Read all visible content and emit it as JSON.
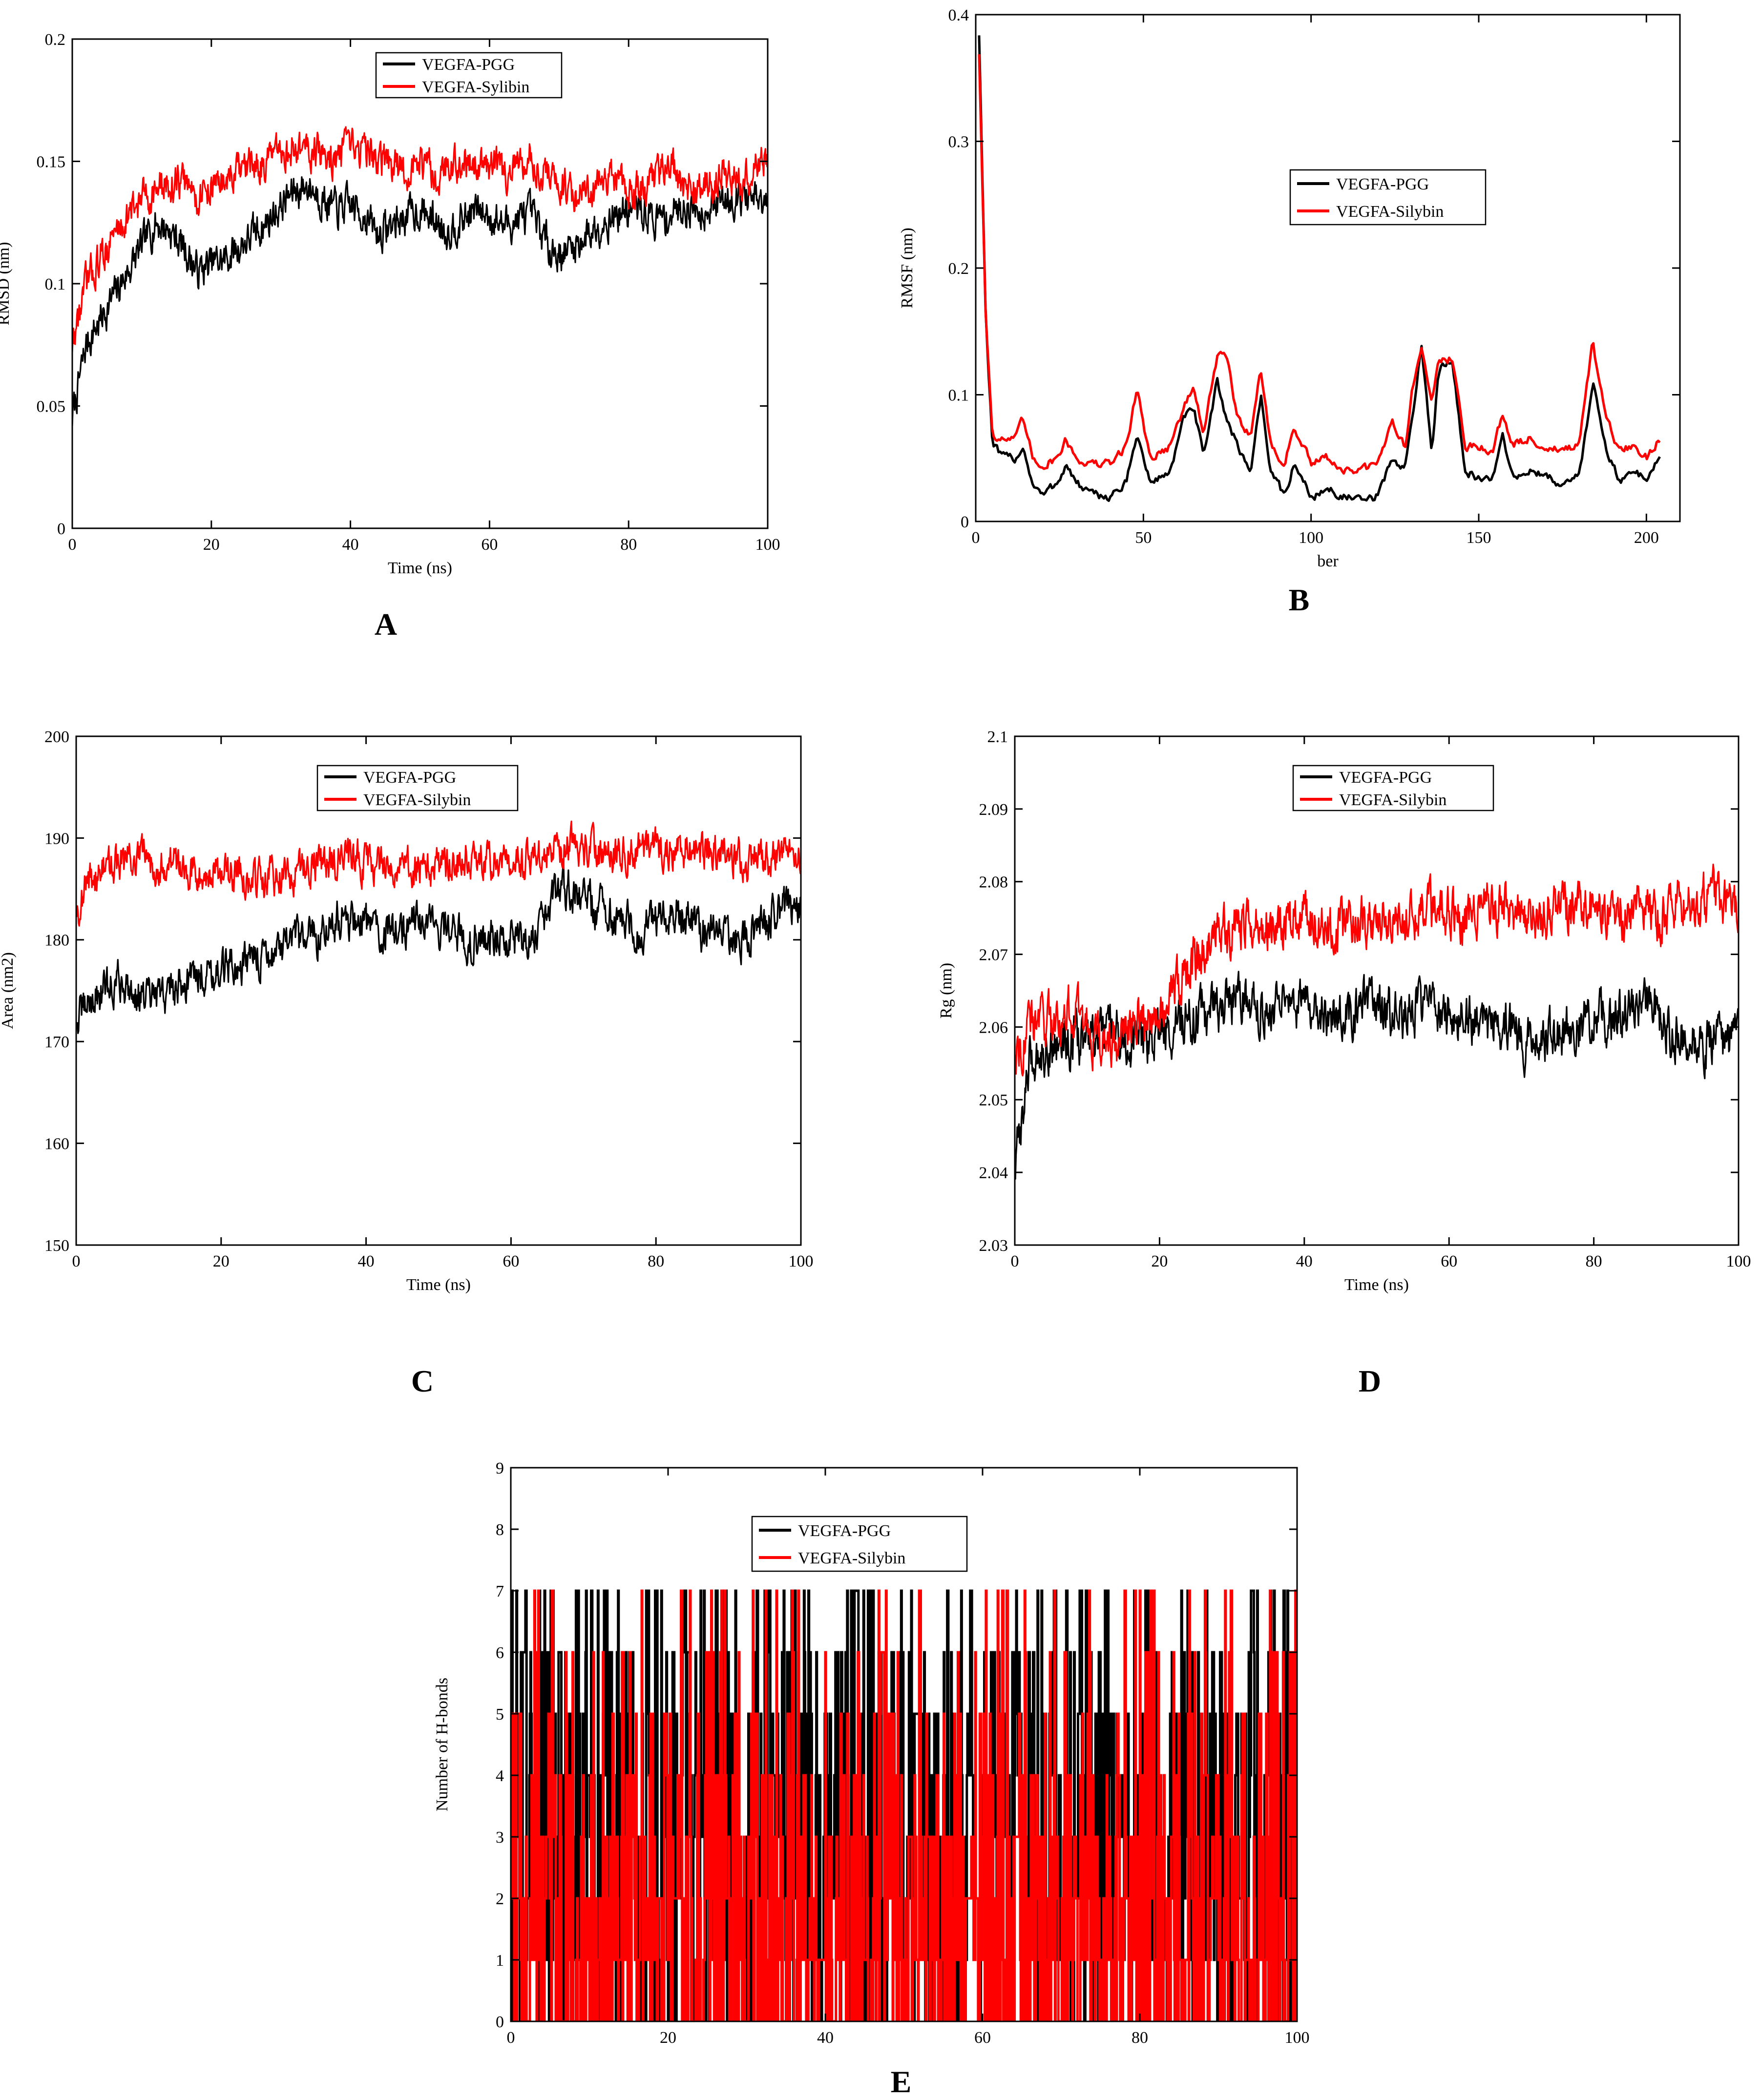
{
  "figure": {
    "panel_labels": [
      "A",
      "B",
      "C",
      "D",
      "E"
    ]
  },
  "colors": {
    "pgg": "#000000",
    "silybin": "#ff0000",
    "axis": "#000000"
  },
  "chart_data": [
    {
      "id": "A",
      "type": "line",
      "title": "",
      "xlabel": "Time (ns)",
      "ylabel": "RMSD (nm)",
      "xlim": [
        0,
        100
      ],
      "ylim": [
        0,
        0.2
      ],
      "xticks": [
        0,
        20,
        40,
        60,
        80,
        100
      ],
      "xtick_labels": [
        "0",
        "20",
        "40",
        "60",
        "80",
        "100"
      ],
      "yticks": [
        0,
        0.05,
        0.1,
        0.15,
        0.2
      ],
      "ytick_labels": [
        "0",
        "0.05",
        "0.1",
        "0.15",
        "0.2"
      ],
      "legend_position": "top-center",
      "series": [
        {
          "name": "VEGFA-PGG",
          "color": "#000000",
          "x": [
            0,
            2,
            4,
            6,
            8,
            10,
            12,
            14,
            16,
            18,
            20,
            22,
            24,
            26,
            28,
            30,
            32,
            34,
            36,
            38,
            40,
            42,
            44,
            46,
            48,
            50,
            52,
            54,
            56,
            58,
            60,
            62,
            64,
            66,
            68,
            70,
            72,
            74,
            76,
            78,
            80,
            82,
            84,
            86,
            88,
            90,
            92,
            94,
            96,
            98,
            100
          ],
          "y": [
            0.045,
            0.075,
            0.085,
            0.095,
            0.105,
            0.115,
            0.125,
            0.122,
            0.115,
            0.105,
            0.108,
            0.11,
            0.115,
            0.12,
            0.125,
            0.132,
            0.138,
            0.14,
            0.135,
            0.13,
            0.132,
            0.128,
            0.12,
            0.124,
            0.128,
            0.13,
            0.126,
            0.122,
            0.126,
            0.13,
            0.128,
            0.124,
            0.126,
            0.128,
            0.118,
            0.112,
            0.115,
            0.12,
            0.125,
            0.128,
            0.13,
            0.13,
            0.126,
            0.128,
            0.132,
            0.13,
            0.132,
            0.135,
            0.136,
            0.134,
            0.13
          ],
          "noise": 0.006
        },
        {
          "name": "VEGFA-Sylibin",
          "color": "#ff0000",
          "x": [
            0,
            2,
            4,
            6,
            8,
            10,
            12,
            14,
            16,
            18,
            20,
            22,
            24,
            26,
            28,
            30,
            32,
            34,
            36,
            38,
            40,
            42,
            44,
            46,
            48,
            50,
            52,
            54,
            56,
            58,
            60,
            62,
            64,
            66,
            68,
            70,
            72,
            74,
            76,
            78,
            80,
            82,
            84,
            86,
            88,
            90,
            92,
            94,
            96,
            98,
            100
          ],
          "y": [
            0.075,
            0.1,
            0.11,
            0.12,
            0.128,
            0.135,
            0.138,
            0.14,
            0.142,
            0.135,
            0.14,
            0.142,
            0.145,
            0.148,
            0.15,
            0.152,
            0.155,
            0.155,
            0.152,
            0.15,
            0.154,
            0.155,
            0.15,
            0.148,
            0.145,
            0.15,
            0.146,
            0.148,
            0.15,
            0.15,
            0.148,
            0.145,
            0.148,
            0.152,
            0.145,
            0.14,
            0.138,
            0.135,
            0.14,
            0.142,
            0.138,
            0.14,
            0.145,
            0.148,
            0.14,
            0.14,
            0.142,
            0.145,
            0.14,
            0.148,
            0.15
          ],
          "noise": 0.006
        }
      ]
    },
    {
      "id": "B",
      "type": "line",
      "title": "",
      "xlabel": "ber",
      "ylabel": "RMSF (nm)",
      "xlim": [
        0,
        210
      ],
      "ylim": [
        0,
        0.4
      ],
      "xticks": [
        0,
        50,
        100,
        150,
        200
      ],
      "xtick_labels": [
        "0",
        "50",
        "100",
        "150",
        "200"
      ],
      "yticks": [
        0,
        0.1,
        0.2,
        0.3,
        0.4
      ],
      "ytick_labels": [
        "0",
        "0.1",
        "0.2",
        "0.3",
        "0.4"
      ],
      "legend_position": "upper-center",
      "series": [
        {
          "name": "VEGFA-PGG",
          "color": "#000000",
          "x": [
            1,
            3,
            5,
            8,
            12,
            14,
            17,
            20,
            24,
            27,
            30,
            35,
            40,
            45,
            48,
            52,
            58,
            62,
            65,
            68,
            72,
            75,
            78,
            82,
            85,
            88,
            92,
            95,
            100,
            105,
            110,
            115,
            120,
            124,
            128,
            130,
            133,
            136,
            138,
            142,
            146,
            150,
            154,
            157,
            160,
            165,
            170,
            175,
            180,
            184,
            188,
            192,
            196,
            200,
            204
          ],
          "y": [
            0.385,
            0.16,
            0.06,
            0.05,
            0.05,
            0.06,
            0.03,
            0.02,
            0.03,
            0.045,
            0.03,
            0.02,
            0.02,
            0.03,
            0.07,
            0.03,
            0.04,
            0.08,
            0.09,
            0.05,
            0.11,
            0.08,
            0.06,
            0.04,
            0.1,
            0.04,
            0.02,
            0.045,
            0.02,
            0.025,
            0.02,
            0.015,
            0.02,
            0.05,
            0.04,
            0.08,
            0.14,
            0.05,
            0.12,
            0.13,
            0.04,
            0.035,
            0.03,
            0.07,
            0.035,
            0.04,
            0.035,
            0.03,
            0.035,
            0.11,
            0.06,
            0.03,
            0.04,
            0.035,
            0.05
          ],
          "noise": 0.003
        },
        {
          "name": "VEGFA-Silybin",
          "color": "#ff0000",
          "x": [
            1,
            3,
            5,
            8,
            12,
            14,
            17,
            20,
            24,
            27,
            30,
            35,
            40,
            45,
            48,
            52,
            58,
            62,
            65,
            68,
            72,
            75,
            78,
            82,
            85,
            88,
            92,
            95,
            100,
            105,
            110,
            115,
            120,
            124,
            128,
            130,
            133,
            136,
            138,
            142,
            146,
            150,
            154,
            157,
            160,
            165,
            170,
            175,
            180,
            184,
            188,
            192,
            196,
            200,
            204
          ],
          "y": [
            0.37,
            0.16,
            0.07,
            0.065,
            0.065,
            0.08,
            0.05,
            0.045,
            0.05,
            0.065,
            0.05,
            0.045,
            0.045,
            0.06,
            0.105,
            0.05,
            0.06,
            0.09,
            0.105,
            0.07,
            0.13,
            0.13,
            0.08,
            0.07,
            0.12,
            0.06,
            0.045,
            0.075,
            0.045,
            0.05,
            0.04,
            0.04,
            0.045,
            0.08,
            0.06,
            0.1,
            0.135,
            0.1,
            0.125,
            0.13,
            0.06,
            0.06,
            0.055,
            0.085,
            0.06,
            0.065,
            0.06,
            0.055,
            0.06,
            0.14,
            0.08,
            0.055,
            0.06,
            0.05,
            0.065
          ],
          "noise": 0.003
        }
      ]
    },
    {
      "id": "C",
      "type": "line",
      "title": "",
      "xlabel": "Time (ns)",
      "ylabel": "Area (nm2)",
      "xlim": [
        0,
        100
      ],
      "ylim": [
        150,
        200
      ],
      "xticks": [
        0,
        20,
        40,
        60,
        80,
        100
      ],
      "xtick_labels": [
        "0",
        "20",
        "40",
        "60",
        "80",
        "100"
      ],
      "yticks": [
        150,
        160,
        170,
        180,
        190,
        200
      ],
      "ytick_labels": [
        "150",
        "160",
        "170",
        "180",
        "190",
        "200"
      ],
      "legend_position": "top-center",
      "series": [
        {
          "name": "VEGFA-PGG",
          "color": "#000000",
          "x": [
            0,
            2,
            4,
            6,
            8,
            10,
            12,
            14,
            16,
            18,
            20,
            22,
            24,
            26,
            28,
            30,
            32,
            34,
            36,
            38,
            40,
            42,
            44,
            46,
            48,
            50,
            52,
            54,
            56,
            58,
            60,
            62,
            64,
            66,
            68,
            70,
            72,
            74,
            76,
            78,
            80,
            82,
            84,
            86,
            88,
            90,
            92,
            94,
            96,
            98,
            100
          ],
          "y": [
            172,
            174,
            175,
            176,
            175,
            174,
            174.5,
            175.5,
            176.5,
            177,
            177,
            177.5,
            178,
            178.5,
            179,
            179.5,
            180,
            181,
            182,
            182,
            181.5,
            181,
            181,
            181.5,
            182,
            181,
            180.5,
            180,
            180,
            180.5,
            180,
            180,
            181,
            184,
            185,
            184,
            183,
            182,
            181.5,
            181,
            182,
            183,
            182,
            181,
            180.5,
            180,
            180,
            181,
            182,
            183,
            183
          ],
          "noise": 1.6
        },
        {
          "name": "VEGFA-Silybin",
          "color": "#ff0000",
          "x": [
            0,
            2,
            4,
            6,
            8,
            10,
            12,
            14,
            16,
            18,
            20,
            22,
            24,
            26,
            28,
            30,
            32,
            34,
            36,
            38,
            40,
            42,
            44,
            46,
            48,
            50,
            52,
            54,
            56,
            58,
            60,
            62,
            64,
            66,
            68,
            70,
            72,
            74,
            76,
            78,
            80,
            82,
            84,
            86,
            88,
            90,
            92,
            94,
            96,
            98,
            100
          ],
          "y": [
            183,
            186,
            187,
            187.5,
            188,
            188,
            187.5,
            187.5,
            187,
            187,
            186.5,
            186.5,
            186,
            186,
            186,
            186.5,
            187,
            187.5,
            188,
            188,
            187.5,
            187.5,
            187,
            187,
            187,
            187,
            187.5,
            188,
            188,
            188,
            188,
            188,
            188,
            188.5,
            189,
            189,
            188.5,
            188,
            188.5,
            189,
            189,
            189,
            189,
            188.5,
            188.5,
            188.5,
            188,
            188,
            188,
            188.5,
            188
          ],
          "noise": 1.5
        }
      ]
    },
    {
      "id": "D",
      "type": "line",
      "title": "",
      "xlabel": "Time (ns)",
      "ylabel": "Rg (nm)",
      "xlim": [
        0,
        100
      ],
      "ylim": [
        2.03,
        2.1
      ],
      "xticks": [
        0,
        20,
        40,
        60,
        80,
        100
      ],
      "xtick_labels": [
        "0",
        "20",
        "40",
        "60",
        "80",
        "100"
      ],
      "yticks": [
        2.03,
        2.04,
        2.05,
        2.06,
        2.07,
        2.08,
        2.09,
        2.1
      ],
      "ytick_labels": [
        "2.03",
        "2.04",
        "2.05",
        "2.06",
        "2.07",
        "2.08",
        "2.09",
        "2.1"
      ],
      "legend_position": "top-center",
      "series": [
        {
          "name": "VEGFA-PGG",
          "color": "#000000",
          "x": [
            0,
            2,
            4,
            6,
            8,
            10,
            12,
            14,
            16,
            18,
            20,
            22,
            24,
            26,
            28,
            30,
            32,
            34,
            36,
            38,
            40,
            42,
            44,
            46,
            48,
            50,
            52,
            54,
            56,
            58,
            60,
            62,
            64,
            66,
            68,
            70,
            72,
            74,
            76,
            78,
            80,
            82,
            84,
            86,
            88,
            90,
            92,
            94,
            96,
            98,
            100
          ],
          "y": [
            2.04,
            2.055,
            2.057,
            2.058,
            2.058,
            2.058,
            2.059,
            2.059,
            2.058,
            2.058,
            2.059,
            2.06,
            2.061,
            2.062,
            2.063,
            2.064,
            2.064,
            2.063,
            2.063,
            2.062,
            2.063,
            2.063,
            2.062,
            2.062,
            2.063,
            2.063,
            2.062,
            2.062,
            2.063,
            2.062,
            2.062,
            2.061,
            2.061,
            2.061,
            2.06,
            2.058,
            2.058,
            2.059,
            2.06,
            2.06,
            2.061,
            2.061,
            2.062,
            2.063,
            2.063,
            2.06,
            2.059,
            2.058,
            2.058,
            2.058,
            2.059
          ],
          "noise": 0.0028
        },
        {
          "name": "VEGFA-Silybin",
          "color": "#ff0000",
          "x": [
            0,
            2,
            4,
            6,
            8,
            10,
            12,
            14,
            16,
            18,
            20,
            22,
            24,
            26,
            28,
            30,
            32,
            34,
            36,
            38,
            40,
            42,
            44,
            46,
            48,
            50,
            52,
            54,
            56,
            58,
            60,
            62,
            64,
            66,
            68,
            70,
            72,
            74,
            76,
            78,
            80,
            82,
            84,
            86,
            88,
            90,
            92,
            94,
            96,
            98,
            100
          ],
          "y": [
            2.057,
            2.06,
            2.061,
            2.061,
            2.062,
            2.06,
            2.057,
            2.058,
            2.06,
            2.061,
            2.063,
            2.066,
            2.068,
            2.07,
            2.072,
            2.073,
            2.074,
            2.074,
            2.074,
            2.075,
            2.075,
            2.074,
            2.074,
            2.074,
            2.074,
            2.075,
            2.075,
            2.075,
            2.075,
            2.076,
            2.076,
            2.075,
            2.076,
            2.077,
            2.076,
            2.075,
            2.075,
            2.076,
            2.076,
            2.077,
            2.077,
            2.076,
            2.076,
            2.076,
            2.075,
            2.076,
            2.077,
            2.077,
            2.078,
            2.078,
            2.076
          ],
          "noise": 0.0028
        }
      ]
    },
    {
      "id": "E",
      "type": "line",
      "title": "",
      "xlabel": "",
      "ylabel": "Number of H-bonds",
      "xlim": [
        0,
        100
      ],
      "ylim": [
        0,
        9
      ],
      "xticks": [
        0,
        20,
        40,
        60,
        80,
        100
      ],
      "xtick_labels": [
        "0",
        "20",
        "40",
        "60",
        "80",
        "100"
      ],
      "yticks": [
        0,
        1,
        2,
        3,
        4,
        5,
        6,
        7,
        8,
        9
      ],
      "ytick_labels": [
        "0",
        "1",
        "2",
        "3",
        "4",
        "5",
        "6",
        "7",
        "8",
        "9"
      ],
      "legend_position": "top-center",
      "series": [
        {
          "name": "VEGFA-PGG",
          "color": "#000000",
          "mean": 3.0,
          "range": [
            0,
            7
          ],
          "step": true
        },
        {
          "name": "VEGFA-Silybin",
          "color": "#ff0000",
          "mean": 1.6,
          "range": [
            0,
            7
          ],
          "step": true
        }
      ]
    }
  ]
}
